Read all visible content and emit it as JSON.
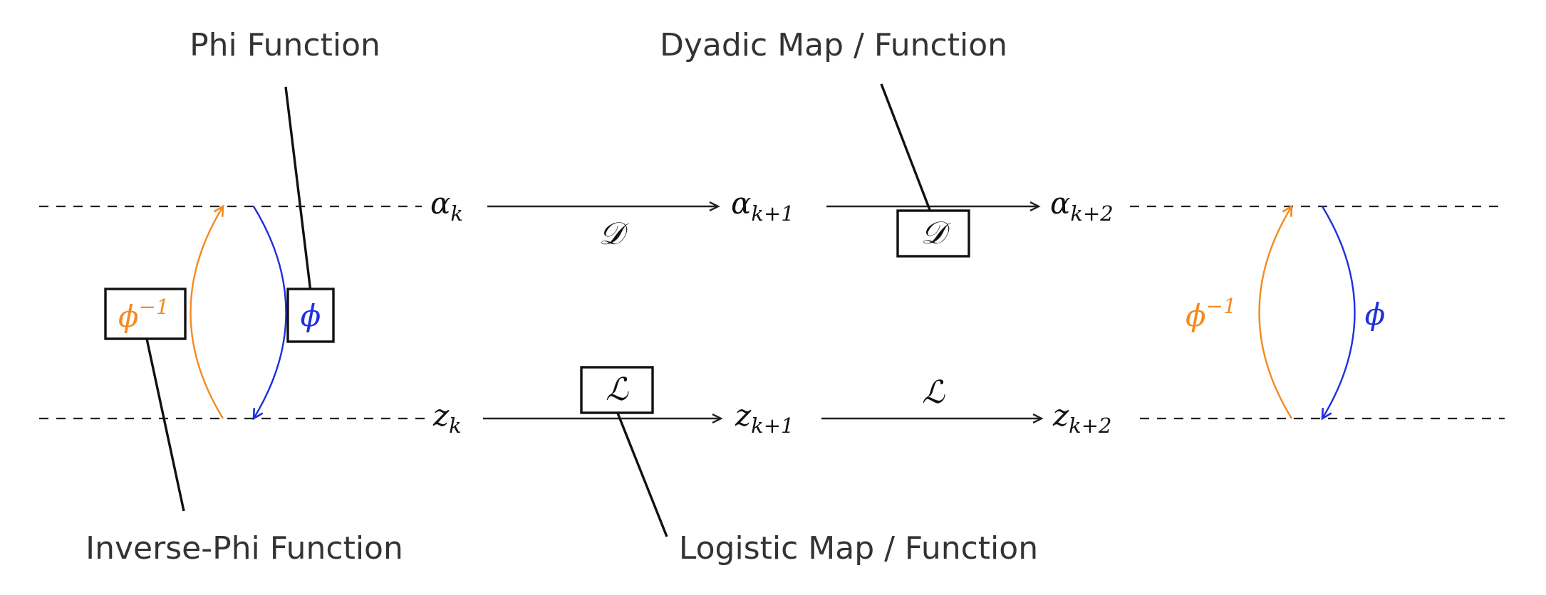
{
  "callouts": {
    "phi": "Phi Function",
    "dyadic": "Dyadic Map / Function",
    "inverse_phi": "Inverse-Phi Function",
    "logistic": "Logistic Map / Function"
  },
  "top_row": {
    "base": "α",
    "n0_sub": "k",
    "n1_sub": "k+1",
    "n2_sub": "k+2",
    "map_label": "𝒟",
    "boxed_map_label": "𝒟"
  },
  "bottom_row": {
    "base": "z",
    "n0_sub": "k",
    "n1_sub": "k+1",
    "n2_sub": "k+2",
    "map_label": "ℒ",
    "boxed_map_label": "ℒ"
  },
  "left_transform": {
    "inverse_base": "ϕ",
    "inverse_sup": "−1",
    "forward": "ϕ"
  },
  "right_transform": {
    "inverse_base": "ϕ",
    "inverse_sup": "−1",
    "forward": "ϕ"
  },
  "colors": {
    "inverse_phi": "#f58a1f",
    "phi": "#1f2fe0",
    "text": "#111111",
    "callout_text": "#333333"
  }
}
